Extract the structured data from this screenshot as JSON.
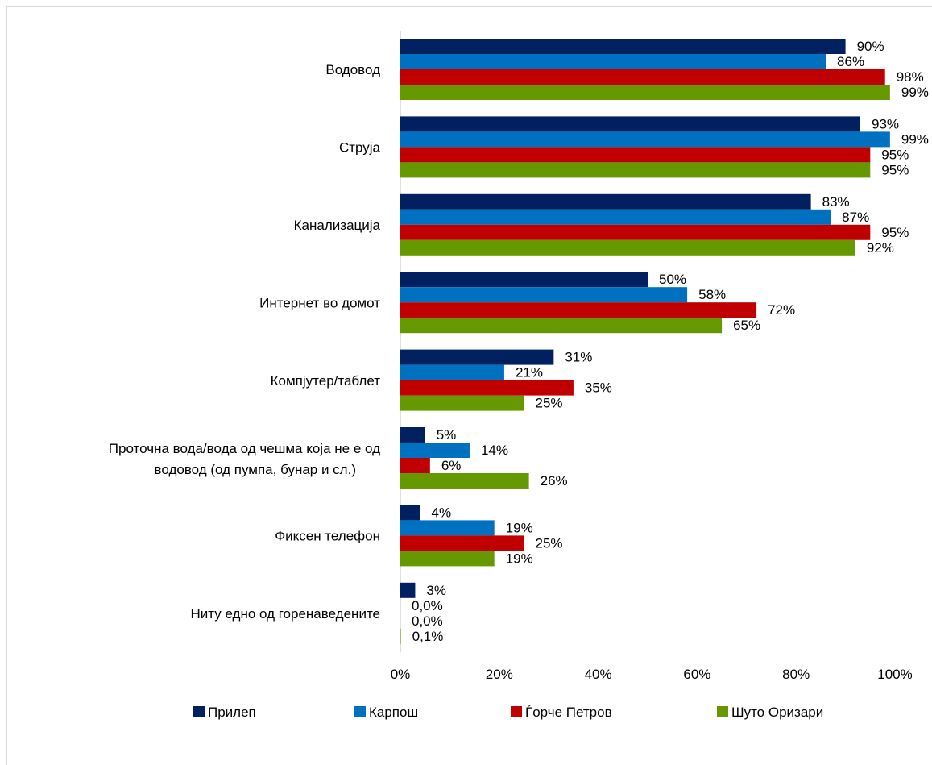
{
  "chart_data": {
    "type": "bar",
    "orientation": "horizontal",
    "categories": [
      "Водовод",
      "Струја",
      "Канализација",
      "Интернет во домот",
      "Компјутер/таблет",
      "Проточна вода/вода од чешма која не е од водовод (од пумпа, бунар и сл.)",
      "Фиксен телефон",
      "Ниту едно од горенаведените"
    ],
    "series": [
      {
        "name": "Прилеп",
        "color": "#002060",
        "values": [
          90,
          93,
          83,
          50,
          31,
          5,
          4,
          3
        ],
        "labels": [
          "90%",
          "93%",
          "83%",
          "50%",
          "31%",
          "5%",
          "4%",
          "3%"
        ]
      },
      {
        "name": "Карпош",
        "color": "#0070C0",
        "values": [
          86,
          99,
          87,
          58,
          21,
          14,
          19,
          0
        ],
        "labels": [
          "86%",
          "99%",
          "87%",
          "58%",
          "21%",
          "14%",
          "19%",
          "0,0%"
        ]
      },
      {
        "name": "Ѓорче Петров",
        "color": "#C00000",
        "values": [
          98,
          95,
          95,
          72,
          35,
          6,
          25,
          0
        ],
        "labels": [
          "98%",
          "95%",
          "95%",
          "72%",
          "35%",
          "6%",
          "25%",
          "0,0%"
        ]
      },
      {
        "name": "Шуто Оризари",
        "color": "#669900",
        "values": [
          99,
          95,
          92,
          65,
          25,
          26,
          19,
          0.1
        ],
        "labels": [
          "99%",
          "95%",
          "92%",
          "65%",
          "25%",
          "26%",
          "19%",
          "0,1%"
        ]
      }
    ],
    "xlim": [
      0,
      100
    ],
    "xticks": [
      "0%",
      "20%",
      "40%",
      "60%",
      "80%",
      "100%"
    ],
    "grid": false,
    "legend_position": "bottom",
    "title": "",
    "xlabel": "",
    "ylabel": ""
  }
}
